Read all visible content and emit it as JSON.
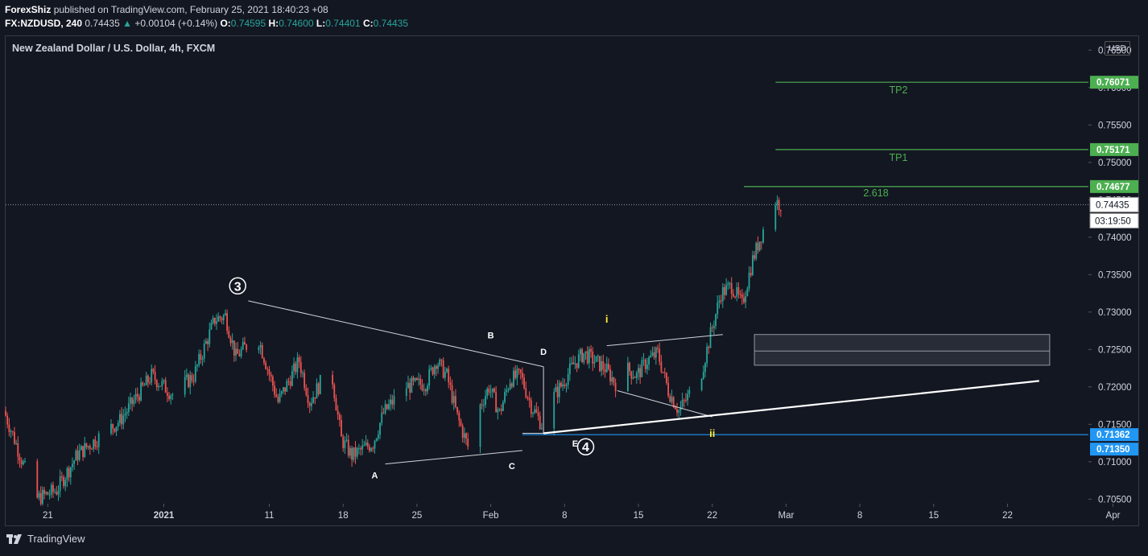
{
  "header": {
    "author": "ForexShiz",
    "published_text": "published on TradingView.com, February 25, 2021 18:40:23 +08",
    "symbol": "FX:NZDUSD, 240",
    "last": "0.74435",
    "change": "+0.00104 (+0.14%)",
    "o_label": "O:",
    "o_value": "0.74595",
    "h_label": "H:",
    "h_value": "0.74600",
    "l_label": "L:",
    "l_value": "0.74401",
    "c_label": "C:",
    "c_value": "0.74435"
  },
  "chart_title": "New Zealand Dollar / U.S. Dollar, 4h, FXCM",
  "currency_button": "USD",
  "footer": {
    "brand": "TradingView"
  },
  "colors": {
    "background": "#131722",
    "up": "#26a69a",
    "down": "#ef5350",
    "target": "#4caf50",
    "support": "#2196f3",
    "wave_label": "#ffeb3b",
    "grid": "#363a45"
  },
  "chart_data": {
    "type": "candlestick",
    "symbol": "NZDUSD",
    "timeframe": "4h",
    "y_axis": {
      "range": [
        0.7045,
        0.766
      ],
      "tick_labels": [
        "0.76500",
        "0.76000",
        "0.75500",
        "0.75000",
        "0.74500",
        "0.74000",
        "0.73500",
        "0.73000",
        "0.72500",
        "0.72000",
        "0.71500",
        "0.71000",
        "0.70500"
      ]
    },
    "x_axis": {
      "range": [
        "2020-12-17",
        "2021-04-02"
      ],
      "ticks": [
        {
          "date": "2020-12-21",
          "label": "21"
        },
        {
          "date": "2021-01-01",
          "label": "2021"
        },
        {
          "date": "2021-01-11",
          "label": "11"
        },
        {
          "date": "2021-01-18",
          "label": "18"
        },
        {
          "date": "2021-01-25",
          "label": "25"
        },
        {
          "date": "2021-02-01",
          "label": "Feb"
        },
        {
          "date": "2021-02-08",
          "label": "8"
        },
        {
          "date": "2021-02-15",
          "label": "15"
        },
        {
          "date": "2021-02-22",
          "label": "22"
        },
        {
          "date": "2021-03-01",
          "label": "Mar"
        },
        {
          "date": "2021-03-08",
          "label": "8"
        },
        {
          "date": "2021-03-15",
          "label": "15"
        },
        {
          "date": "2021-03-22",
          "label": "22"
        },
        {
          "date": "2021-04-01",
          "label": "Apr"
        }
      ]
    },
    "price_path": [
      [
        "2020-12-17",
        0.7168
      ],
      [
        "2020-12-18",
        0.713
      ],
      [
        "2020-12-20",
        0.705
      ],
      [
        "2020-12-22",
        0.7062
      ],
      [
        "2020-12-24",
        0.711
      ],
      [
        "2020-12-28",
        0.7155
      ],
      [
        "2020-12-31",
        0.7215
      ],
      [
        "2021-01-02",
        0.719
      ],
      [
        "2021-01-04",
        0.7215
      ],
      [
        "2021-01-06",
        0.729
      ],
      [
        "2021-01-07",
        0.7295
      ],
      [
        "2021-01-08",
        0.724
      ],
      [
        "2021-01-10",
        0.727
      ],
      [
        "2021-01-11",
        0.7225
      ],
      [
        "2021-01-12",
        0.718
      ],
      [
        "2021-01-14",
        0.7235
      ],
      [
        "2021-01-15",
        0.718
      ],
      [
        "2021-01-16",
        0.7205
      ],
      [
        "2021-01-17",
        0.7225
      ],
      [
        "2021-01-18",
        0.713
      ],
      [
        "2021-01-19",
        0.7108
      ],
      [
        "2021-01-21",
        0.7125
      ],
      [
        "2021-01-22",
        0.7165
      ],
      [
        "2021-01-24",
        0.72
      ],
      [
        "2021-01-26",
        0.7205
      ],
      [
        "2021-01-27",
        0.7235
      ],
      [
        "2021-01-28",
        0.7215
      ],
      [
        "2021-01-29",
        0.716
      ],
      [
        "2021-01-30",
        0.712
      ],
      [
        "2021-01-31",
        0.717
      ],
      [
        "2021-02-01",
        0.72
      ],
      [
        "2021-02-02",
        0.7165
      ],
      [
        "2021-02-03",
        0.721
      ],
      [
        "2021-02-04",
        0.7215
      ],
      [
        "2021-02-05",
        0.7175
      ],
      [
        "2021-02-06",
        0.715
      ],
      [
        "2021-02-07",
        0.7185
      ],
      [
        "2021-02-08",
        0.7205
      ],
      [
        "2021-02-09",
        0.723
      ],
      [
        "2021-02-10",
        0.7245
      ],
      [
        "2021-02-12",
        0.7225
      ],
      [
        "2021-02-13",
        0.7205
      ],
      [
        "2021-02-14",
        0.7225
      ],
      [
        "2021-02-15",
        0.7215
      ],
      [
        "2021-02-16",
        0.7235
      ],
      [
        "2021-02-17",
        0.7245
      ],
      [
        "2021-02-18",
        0.7195
      ],
      [
        "2021-02-19",
        0.7168
      ],
      [
        "2021-02-20",
        0.719
      ],
      [
        "2021-02-21",
        0.721
      ],
      [
        "2021-02-22",
        0.727
      ],
      [
        "2021-02-23",
        0.7325
      ],
      [
        "2021-02-24",
        0.7335
      ],
      [
        "2021-02-25",
        0.731
      ],
      [
        "2021-02-26",
        0.737
      ],
      [
        "2021-02-27",
        0.741
      ],
      [
        "2021-02-28",
        0.745
      ],
      [
        "2021-02-28 12:00",
        0.7445
      ]
    ],
    "levels": [
      {
        "name": "TP2",
        "value": 0.76071,
        "label": "0.76071",
        "start": "2021-02-28"
      },
      {
        "name": "TP1",
        "value": 0.75171,
        "label": "0.75171",
        "start": "2021-02-28"
      },
      {
        "name": "2.618",
        "value": 0.74677,
        "label": "0.74677",
        "start": "2021-02-25"
      },
      {
        "name": "support",
        "value": 0.71362,
        "label": "0.71362",
        "start": "2021-02-04"
      }
    ],
    "extra_price_label": "0.71350",
    "current_price": {
      "value": 0.74435,
      "label": "0.74435",
      "countdown": "03:19:50"
    },
    "zone": {
      "x0": "2021-02-26",
      "x1": "2021-03-26",
      "top": 0.727,
      "mid": 0.7248,
      "bottom": 0.7229
    },
    "trendline": {
      "from": [
        "2021-02-06",
        0.7138
      ],
      "to": [
        "2021-03-25",
        0.7208
      ]
    },
    "triangle": {
      "upper": [
        [
          "2021-01-09",
          0.7315
        ],
        [
          "2021-02-06",
          0.7227
        ]
      ],
      "lower": [
        [
          "2021-01-22",
          0.7097
        ],
        [
          "2021-02-04",
          0.7115
        ]
      ],
      "upper_ext": [
        [
          "2021-02-06",
          0.7227
        ],
        [
          "2021-02-06",
          0.7138
        ],
        [
          "2021-02-04",
          0.7138
        ]
      ]
    },
    "wedge": {
      "upper": [
        [
          "2021-02-12",
          0.7255
        ],
        [
          "2021-02-23",
          0.727
        ]
      ],
      "lower": [
        [
          "2021-02-13",
          0.7195
        ],
        [
          "2021-02-22",
          0.716
        ]
      ]
    },
    "wave_labels": [
      {
        "text": "3",
        "date": "2021-01-08",
        "price": 0.7335,
        "style": "circled"
      },
      {
        "text": "4",
        "date": "2021-02-10",
        "price": 0.712,
        "style": "circled"
      },
      {
        "text": "A",
        "date": "2021-01-21",
        "price": 0.7078,
        "style": "white"
      },
      {
        "text": "B",
        "date": "2021-02-01",
        "price": 0.7265,
        "style": "white"
      },
      {
        "text": "C",
        "date": "2021-02-03",
        "price": 0.709,
        "style": "white"
      },
      {
        "text": "D",
        "date": "2021-02-06",
        "price": 0.7243,
        "style": "white"
      },
      {
        "text": "E",
        "date": "2021-02-09",
        "price": 0.712,
        "style": "white"
      },
      {
        "text": "i",
        "date": "2021-02-12",
        "price": 0.7286,
        "style": "yellow"
      },
      {
        "text": "ii",
        "date": "2021-02-22",
        "price": 0.7133,
        "style": "yellow"
      }
    ]
  }
}
